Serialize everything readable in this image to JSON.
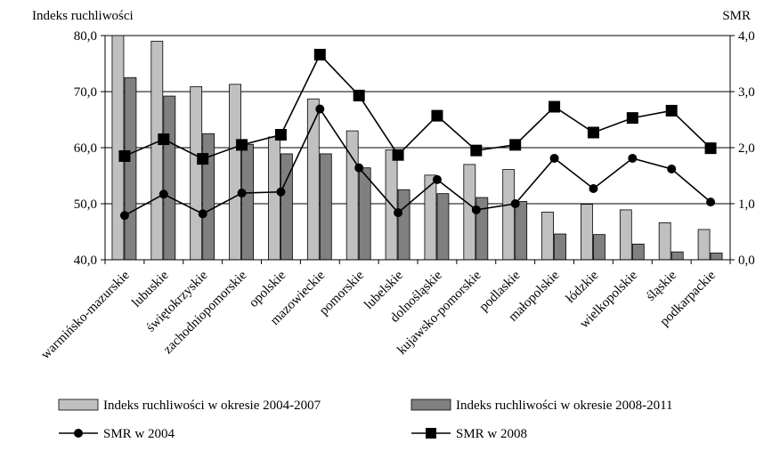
{
  "chart_data": {
    "type": "bar",
    "left_axis_title": "Indeks ruchliwości",
    "right_axis_title": "SMR",
    "categories": [
      "warmińsko-mazurskie",
      "lubuskie",
      "świętokrzyskie",
      "zachodniopomorskie",
      "opolskie",
      "mazowieckie",
      "pomorskie",
      "lubelskie",
      "dolnośląskie",
      "kujawsko-pomorskie",
      "podlaskie",
      "małopolskie",
      "łódzkie",
      "wielkopolskie",
      "śląskie",
      "podkarpackie"
    ],
    "left_axis": {
      "min": 40,
      "max": 80,
      "ticks": [
        "40,0",
        "50,0",
        "60,0",
        "70,0",
        "80,0"
      ]
    },
    "right_axis": {
      "min": 0,
      "max": 4,
      "ticks": [
        "0,0",
        "1,0",
        "2,0",
        "3,0",
        "4,0"
      ]
    },
    "bar_series": [
      {
        "name": "Indeks ruchliwości w okresie 2004-2007",
        "color": "#c0c0c0",
        "values": [
          81.0,
          79.0,
          70.9,
          71.3,
          61.9,
          68.7,
          63.0,
          59.6,
          55.1,
          57.0,
          56.1,
          48.5,
          49.9,
          48.9,
          46.6,
          45.4
        ]
      },
      {
        "name": "Indeks ruchliwości w okresie 2008-2011",
        "color": "#808080",
        "values": [
          72.5,
          69.2,
          62.5,
          60.6,
          58.9,
          58.9,
          56.4,
          52.5,
          51.8,
          51.1,
          50.4,
          44.6,
          44.5,
          42.8,
          41.4,
          41.2
        ]
      }
    ],
    "line_series": [
      {
        "name": "SMR w 2004",
        "marker": "circle",
        "values": [
          0.79,
          1.17,
          0.82,
          1.19,
          1.21,
          2.69,
          1.64,
          0.84,
          1.43,
          0.89,
          1.0,
          1.81,
          1.27,
          1.81,
          1.62,
          1.03
        ]
      },
      {
        "name": "SMR w 2008",
        "marker": "square",
        "values": [
          1.85,
          2.15,
          1.8,
          2.05,
          2.23,
          3.66,
          2.93,
          1.87,
          2.57,
          1.95,
          2.05,
          2.73,
          2.27,
          2.53,
          2.66,
          1.99
        ]
      }
    ],
    "grid": true,
    "legend_position": "bottom"
  }
}
